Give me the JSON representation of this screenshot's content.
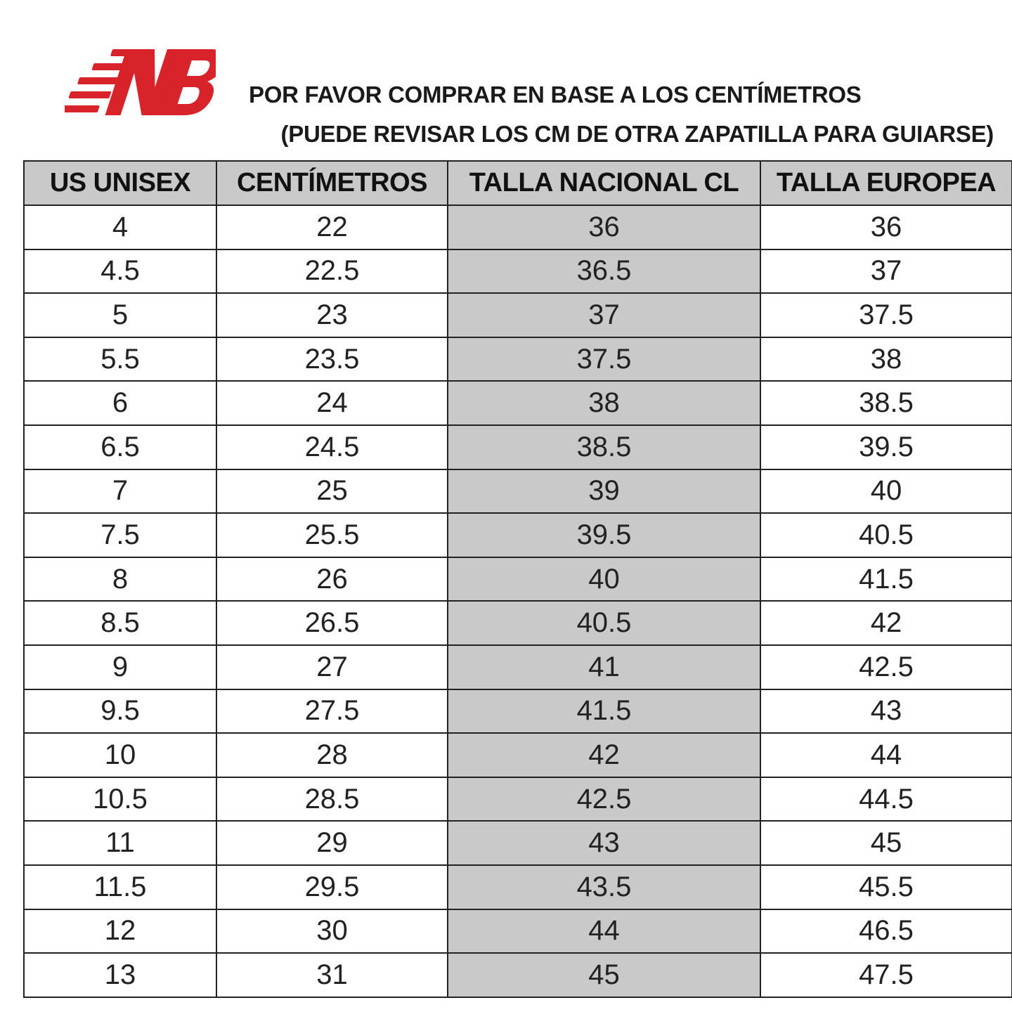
{
  "header": {
    "lines": [
      "POR FAVOR COMPRAR EN BASE A LOS CENTÍMETROS",
      "(PUEDE REVISAR LOS CM DE OTRA ZAPATILLA PARA GUIARSE)"
    ]
  },
  "table": {
    "columns": [
      "US UNISEX",
      "CENTÍMETROS",
      "TALLA NACIONAL CL",
      "TALLA EUROPEA"
    ],
    "rows": [
      [
        "4",
        "22",
        "36",
        "36"
      ],
      [
        "4.5",
        "22.5",
        "36.5",
        "37"
      ],
      [
        "5",
        "23",
        "37",
        "37.5"
      ],
      [
        "5.5",
        "23.5",
        "37.5",
        "38"
      ],
      [
        "6",
        "24",
        "38",
        "38.5"
      ],
      [
        "6.5",
        "24.5",
        "38.5",
        "39.5"
      ],
      [
        "7",
        "25",
        "39",
        "40"
      ],
      [
        "7.5",
        "25.5",
        "39.5",
        "40.5"
      ],
      [
        "8",
        "26",
        "40",
        "41.5"
      ],
      [
        "8.5",
        "26.5",
        "40.5",
        "42"
      ],
      [
        "9",
        "27",
        "41",
        "42.5"
      ],
      [
        "9.5",
        "27.5",
        "41.5",
        "43"
      ],
      [
        "10",
        "28",
        "42",
        "44"
      ],
      [
        "10.5",
        "28.5",
        "42.5",
        "44.5"
      ],
      [
        "11",
        "29",
        "43",
        "45"
      ],
      [
        "11.5",
        "29.5",
        "43.5",
        "45.5"
      ],
      [
        "12",
        "30",
        "44",
        "46.5"
      ],
      [
        "13",
        "31",
        "45",
        "47.5"
      ]
    ]
  }
}
